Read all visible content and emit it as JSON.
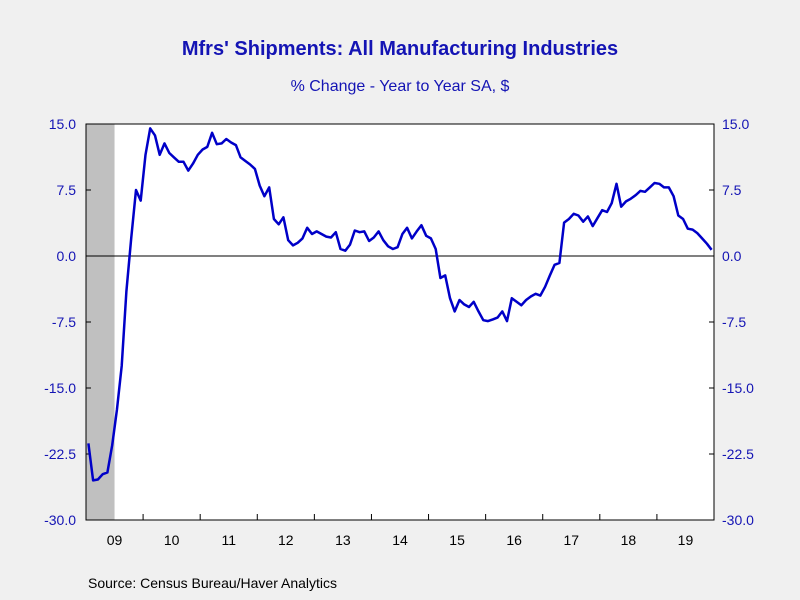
{
  "title": "Mfrs' Shipments: All Manufacturing Industries",
  "subtitle": "% Change - Year to Year     SA, $",
  "source": "Source:  Census Bureau/Haver Analytics",
  "colors": {
    "line": "#0000c8",
    "text": "#1414b4",
    "recession": "#c0c0c0",
    "plot_bg": "#ffffff",
    "page_bg": "#f0f0f0"
  },
  "chart_data": {
    "type": "line",
    "title": "Mfrs' Shipments: All Manufacturing Industries",
    "subtitle": "% Change - Year to Year     SA, $",
    "ylim": [
      -30,
      15
    ],
    "y_ticks": [
      "15.0",
      "7.5",
      "0.0",
      "-7.5",
      "-15.0",
      "-22.5",
      "-30.0"
    ],
    "y_tick_values": [
      15,
      7.5,
      0,
      -7.5,
      -15,
      -22.5,
      -30
    ],
    "x_range": [
      "2009-01",
      "2019-12"
    ],
    "x_ticks": [
      "09",
      "10",
      "11",
      "12",
      "13",
      "14",
      "15",
      "16",
      "17",
      "18",
      "19"
    ],
    "recession": {
      "start": "2009-01",
      "end": "2009-06"
    },
    "grid": false,
    "zero_line": true,
    "series": [
      {
        "x": [
          "2009-01",
          "2009-02",
          "2009-03",
          "2009-04",
          "2009-05",
          "2009-06",
          "2009-07",
          "2009-08",
          "2009-09",
          "2009-10",
          "2009-11",
          "2009-12",
          "2010-01",
          "2010-02",
          "2010-03",
          "2010-04",
          "2010-05",
          "2010-06",
          "2010-07",
          "2010-08",
          "2010-09",
          "2010-10",
          "2010-11",
          "2010-12",
          "2011-01",
          "2011-02",
          "2011-03",
          "2011-04",
          "2011-05",
          "2011-06",
          "2011-07",
          "2011-08",
          "2011-09",
          "2011-10",
          "2011-11",
          "2011-12",
          "2012-01",
          "2012-02",
          "2012-03",
          "2012-04",
          "2012-05",
          "2012-06",
          "2012-07",
          "2012-08",
          "2012-09",
          "2012-10",
          "2012-11",
          "2012-12",
          "2013-01",
          "2013-02",
          "2013-03",
          "2013-04",
          "2013-05",
          "2013-06",
          "2013-07",
          "2013-08",
          "2013-09",
          "2013-10",
          "2013-11",
          "2013-12",
          "2014-01",
          "2014-02",
          "2014-03",
          "2014-04",
          "2014-05",
          "2014-06",
          "2014-07",
          "2014-08",
          "2014-09",
          "2014-10",
          "2014-11",
          "2014-12",
          "2015-01",
          "2015-02",
          "2015-03",
          "2015-04",
          "2015-05",
          "2015-06",
          "2015-07",
          "2015-08",
          "2015-09",
          "2015-10",
          "2015-11",
          "2015-12",
          "2016-01",
          "2016-02",
          "2016-03",
          "2016-04",
          "2016-05",
          "2016-06",
          "2016-07",
          "2016-08",
          "2016-09",
          "2016-10",
          "2016-11",
          "2016-12",
          "2017-01",
          "2017-02",
          "2017-03",
          "2017-04",
          "2017-05",
          "2017-06",
          "2017-07",
          "2017-08",
          "2017-09",
          "2017-10",
          "2017-11",
          "2017-12",
          "2018-01",
          "2018-02",
          "2018-03",
          "2018-04",
          "2018-05",
          "2018-06",
          "2018-07",
          "2018-08",
          "2018-09",
          "2018-10",
          "2018-11",
          "2018-12",
          "2019-01",
          "2019-02",
          "2019-03",
          "2019-04",
          "2019-05",
          "2019-06",
          "2019-07",
          "2019-08",
          "2019-09",
          "2019-10",
          "2019-11",
          "2019-12"
        ],
        "values": [
          -21.3,
          -25.5,
          -25.4,
          -24.8,
          -24.6,
          -21.5,
          -17.5,
          -12.5,
          -4.0,
          2.0,
          7.5,
          6.3,
          11.5,
          14.5,
          13.7,
          11.5,
          12.8,
          11.7,
          11.2,
          10.7,
          10.7,
          9.7,
          10.5,
          11.5,
          12.1,
          12.4,
          14.0,
          12.7,
          12.8,
          13.3,
          12.9,
          12.6,
          11.2,
          10.8,
          10.4,
          9.9,
          8.0,
          6.8,
          7.8,
          4.2,
          3.6,
          4.4,
          1.8,
          1.2,
          1.5,
          2.0,
          3.2,
          2.5,
          2.8,
          2.5,
          2.2,
          2.1,
          2.7,
          0.8,
          0.6,
          1.3,
          2.9,
          2.7,
          2.8,
          1.7,
          2.1,
          2.8,
          1.8,
          1.1,
          0.8,
          1.0,
          2.5,
          3.2,
          2.0,
          2.8,
          3.5,
          2.3,
          2.0,
          0.8,
          -2.5,
          -2.2,
          -4.8,
          -6.3,
          -5.0,
          -5.5,
          -5.8,
          -5.2,
          -6.3,
          -7.3,
          -7.4,
          -7.2,
          -7.0,
          -6.3,
          -7.4,
          -4.8,
          -5.2,
          -5.6,
          -5.0,
          -4.6,
          -4.3,
          -4.5,
          -3.5,
          -2.2,
          -1.0,
          -0.8,
          3.8,
          4.2,
          4.8,
          4.6,
          3.9,
          4.5,
          3.4,
          4.3,
          5.2,
          5.0,
          6.0,
          8.2,
          5.6,
          6.2,
          6.5,
          6.9,
          7.4,
          7.3,
          7.8,
          8.3,
          8.2,
          7.8,
          7.8,
          6.8,
          4.6,
          4.2,
          3.1,
          3.0,
          2.6,
          2.0,
          1.4,
          0.7
        ]
      }
    ]
  }
}
